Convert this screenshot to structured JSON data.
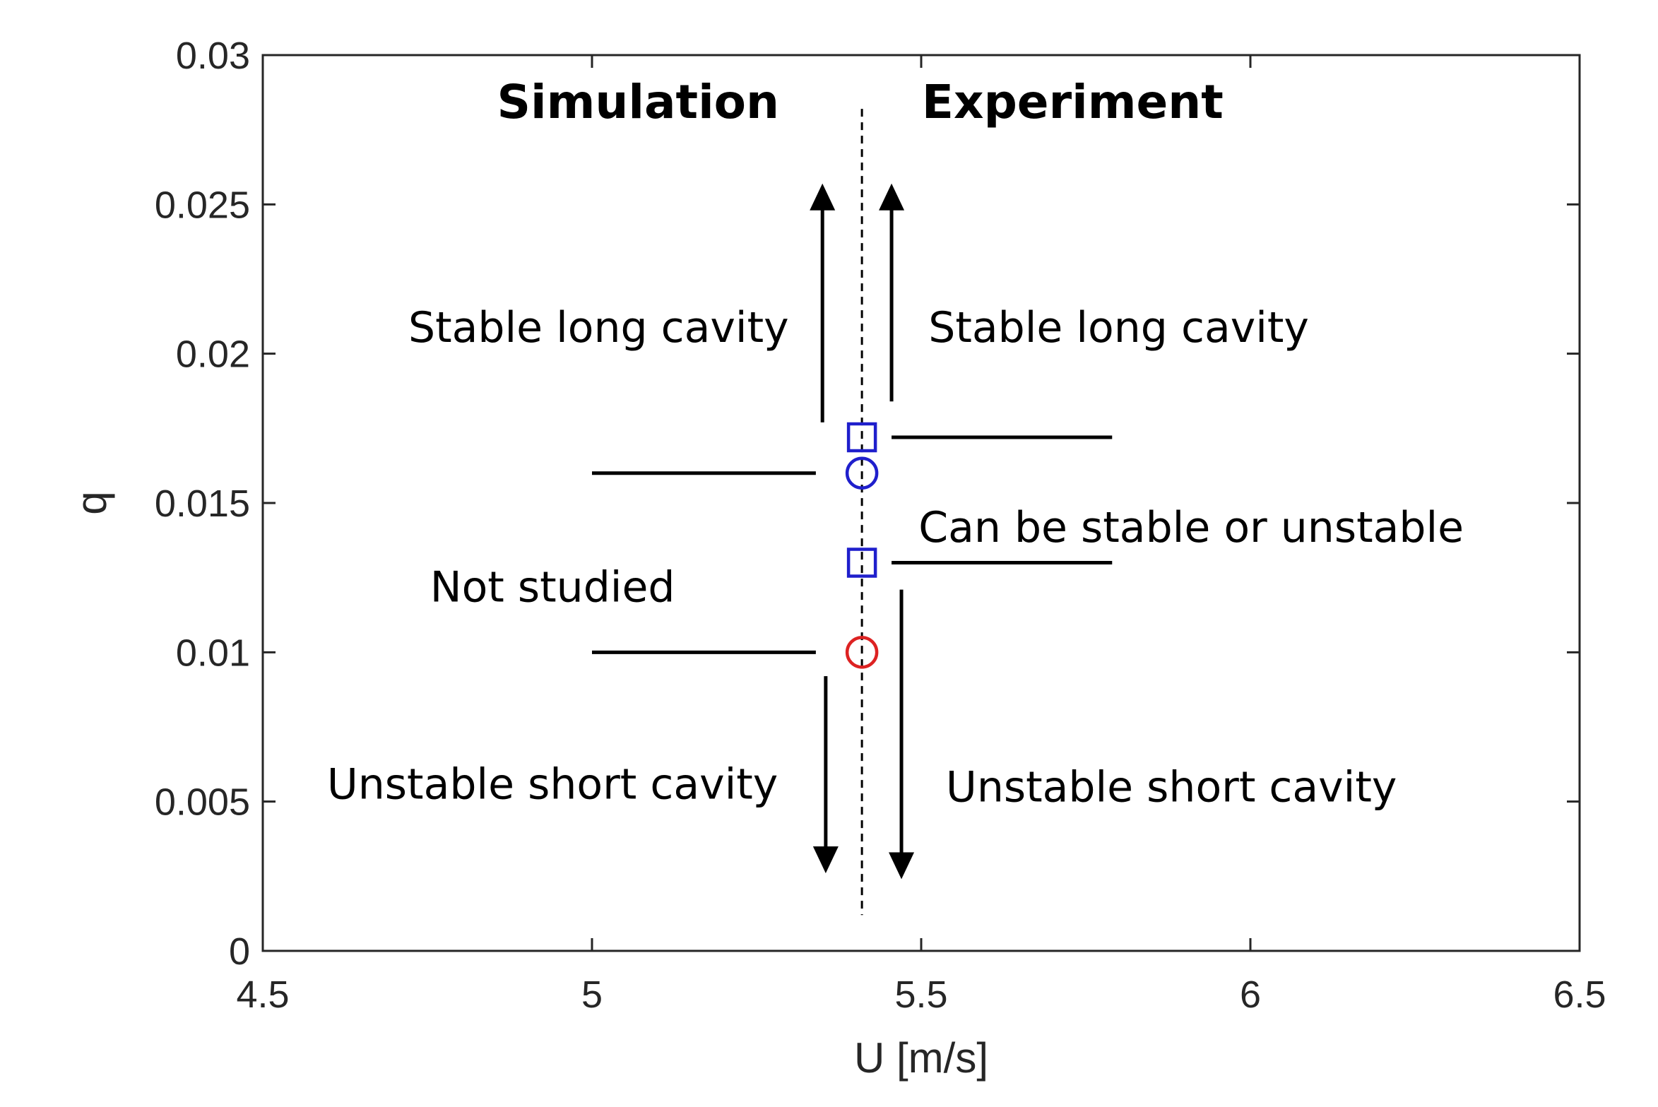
{
  "chart_data": {
    "type": "scatter",
    "title": "",
    "xlabel": "U [m/s]",
    "ylabel": "q",
    "xlim": [
      4.5,
      6.5
    ],
    "ylim": [
      0,
      0.03
    ],
    "x_ticks": [
      4.5,
      5,
      5.5,
      6,
      6.5
    ],
    "x_tick_labels": [
      "4.5",
      "5",
      "5.5",
      "6",
      "6.5"
    ],
    "y_ticks": [
      0,
      0.005,
      0.01,
      0.015,
      0.02,
      0.025,
      0.03
    ],
    "y_tick_labels": [
      "0",
      "0.005",
      "0.01",
      "0.015",
      "0.02",
      "0.025",
      "0.03"
    ],
    "grid": false,
    "points": [
      {
        "x": 5.41,
        "y": 0.0172,
        "marker": "square",
        "color": "#1f1fcc"
      },
      {
        "x": 5.41,
        "y": 0.016,
        "marker": "circle",
        "color": "#1f1fcc"
      },
      {
        "x": 5.41,
        "y": 0.013,
        "marker": "square",
        "color": "#1f1fcc"
      },
      {
        "x": 5.41,
        "y": 0.01,
        "marker": "circle",
        "color": "#dd2222"
      }
    ],
    "divider": {
      "x": 5.41,
      "style": "dashed"
    },
    "segments": [
      {
        "x1": 5.0,
        "x2": 5.34,
        "y": 0.016
      },
      {
        "x1": 5.0,
        "x2": 5.34,
        "y": 0.01
      },
      {
        "x1": 5.455,
        "x2": 5.79,
        "y": 0.0172
      },
      {
        "x1": 5.455,
        "x2": 5.79,
        "y": 0.013
      }
    ],
    "arrows": [
      {
        "x": 5.35,
        "y_from": 0.0177,
        "y_to": 0.0257
      },
      {
        "x": 5.455,
        "y_from": 0.0184,
        "y_to": 0.0257
      },
      {
        "x": 5.355,
        "y_from": 0.0092,
        "y_to": 0.0026
      },
      {
        "x": 5.47,
        "y_from": 0.0121,
        "y_to": 0.0024
      }
    ],
    "annotations": [
      {
        "text": "Simulation",
        "x": 5.07,
        "y": 0.0279,
        "bold": true
      },
      {
        "text": "Experiment",
        "x": 5.73,
        "y": 0.0279,
        "bold": true
      },
      {
        "text": "Stable long cavity",
        "x": 5.01,
        "y": 0.0204,
        "bold": false
      },
      {
        "text": "Stable long cavity",
        "x": 5.8,
        "y": 0.0204,
        "bold": false
      },
      {
        "text": "Can be stable or unstable",
        "x": 5.91,
        "y": 0.0137,
        "bold": false
      },
      {
        "text": "Not studied",
        "x": 4.94,
        "y": 0.0117,
        "bold": false
      },
      {
        "text": "Unstable short cavity",
        "x": 4.94,
        "y": 0.0051,
        "bold": false
      },
      {
        "text": "Unstable short cavity",
        "x": 5.88,
        "y": 0.005,
        "bold": false
      }
    ],
    "colors": {
      "axis": "#262626",
      "marker_blue": "#1f1fcc",
      "marker_red": "#dd2222",
      "ink": "#000000"
    }
  }
}
